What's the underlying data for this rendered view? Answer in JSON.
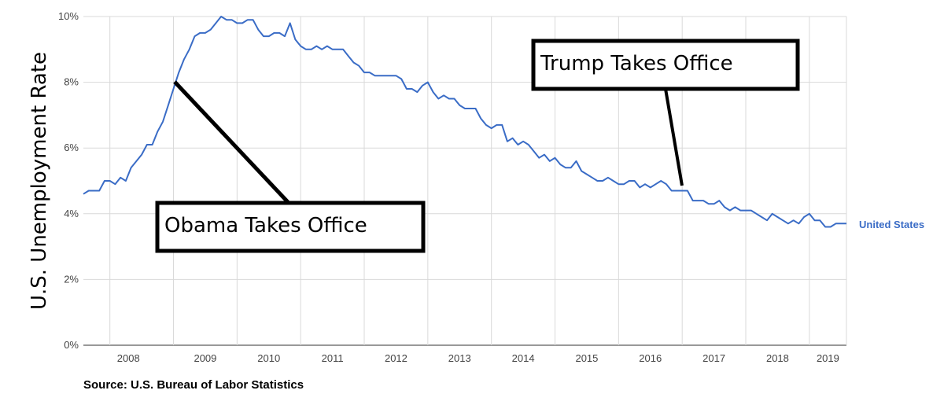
{
  "chart_data": {
    "type": "line",
    "ylabel": "U.S. Unemployment Rate",
    "ylim": [
      0,
      10
    ],
    "xlim": [
      "2007-08",
      "2019-08"
    ],
    "y_ticks": [
      "0%",
      "2%",
      "4%",
      "6%",
      "8%",
      "10%"
    ],
    "x_ticks": [
      "2008",
      "2009",
      "2010",
      "2011",
      "2012",
      "2013",
      "2014",
      "2015",
      "2016",
      "2017",
      "2018",
      "2019"
    ],
    "grid": true,
    "series": [
      {
        "name": "United States",
        "color": "#3a6cc6",
        "points": [
          [
            "2007-08",
            4.6
          ],
          [
            "2007-09",
            4.7
          ],
          [
            "2007-10",
            4.7
          ],
          [
            "2007-11",
            4.7
          ],
          [
            "2007-12",
            5.0
          ],
          [
            "2008-01",
            5.0
          ],
          [
            "2008-02",
            4.9
          ],
          [
            "2008-03",
            5.1
          ],
          [
            "2008-04",
            5.0
          ],
          [
            "2008-05",
            5.4
          ],
          [
            "2008-06",
            5.6
          ],
          [
            "2008-07",
            5.8
          ],
          [
            "2008-08",
            6.1
          ],
          [
            "2008-09",
            6.1
          ],
          [
            "2008-10",
            6.5
          ],
          [
            "2008-11",
            6.8
          ],
          [
            "2008-12",
            7.3
          ],
          [
            "2009-01",
            7.8
          ],
          [
            "2009-02",
            8.3
          ],
          [
            "2009-03",
            8.7
          ],
          [
            "2009-04",
            9.0
          ],
          [
            "2009-05",
            9.4
          ],
          [
            "2009-06",
            9.5
          ],
          [
            "2009-07",
            9.5
          ],
          [
            "2009-08",
            9.6
          ],
          [
            "2009-09",
            9.8
          ],
          [
            "2009-10",
            10.0
          ],
          [
            "2009-11",
            9.9
          ],
          [
            "2009-12",
            9.9
          ],
          [
            "2010-01",
            9.8
          ],
          [
            "2010-02",
            9.8
          ],
          [
            "2010-03",
            9.9
          ],
          [
            "2010-04",
            9.9
          ],
          [
            "2010-05",
            9.6
          ],
          [
            "2010-06",
            9.4
          ],
          [
            "2010-07",
            9.4
          ],
          [
            "2010-08",
            9.5
          ],
          [
            "2010-09",
            9.5
          ],
          [
            "2010-10",
            9.4
          ],
          [
            "2010-11",
            9.8
          ],
          [
            "2010-12",
            9.3
          ],
          [
            "2011-01",
            9.1
          ],
          [
            "2011-02",
            9.0
          ],
          [
            "2011-03",
            9.0
          ],
          [
            "2011-04",
            9.1
          ],
          [
            "2011-05",
            9.0
          ],
          [
            "2011-06",
            9.1
          ],
          [
            "2011-07",
            9.0
          ],
          [
            "2011-08",
            9.0
          ],
          [
            "2011-09",
            9.0
          ],
          [
            "2011-10",
            8.8
          ],
          [
            "2011-11",
            8.6
          ],
          [
            "2011-12",
            8.5
          ],
          [
            "2012-01",
            8.3
          ],
          [
            "2012-02",
            8.3
          ],
          [
            "2012-03",
            8.2
          ],
          [
            "2012-04",
            8.2
          ],
          [
            "2012-05",
            8.2
          ],
          [
            "2012-06",
            8.2
          ],
          [
            "2012-07",
            8.2
          ],
          [
            "2012-08",
            8.1
          ],
          [
            "2012-09",
            7.8
          ],
          [
            "2012-10",
            7.8
          ],
          [
            "2012-11",
            7.7
          ],
          [
            "2012-12",
            7.9
          ],
          [
            "2013-01",
            8.0
          ],
          [
            "2013-02",
            7.7
          ],
          [
            "2013-03",
            7.5
          ],
          [
            "2013-04",
            7.6
          ],
          [
            "2013-05",
            7.5
          ],
          [
            "2013-06",
            7.5
          ],
          [
            "2013-07",
            7.3
          ],
          [
            "2013-08",
            7.2
          ],
          [
            "2013-09",
            7.2
          ],
          [
            "2013-10",
            7.2
          ],
          [
            "2013-11",
            6.9
          ],
          [
            "2013-12",
            6.7
          ],
          [
            "2014-01",
            6.6
          ],
          [
            "2014-02",
            6.7
          ],
          [
            "2014-03",
            6.7
          ],
          [
            "2014-04",
            6.2
          ],
          [
            "2014-05",
            6.3
          ],
          [
            "2014-06",
            6.1
          ],
          [
            "2014-07",
            6.2
          ],
          [
            "2014-08",
            6.1
          ],
          [
            "2014-09",
            5.9
          ],
          [
            "2014-10",
            5.7
          ],
          [
            "2014-11",
            5.8
          ],
          [
            "2014-12",
            5.6
          ],
          [
            "2015-01",
            5.7
          ],
          [
            "2015-02",
            5.5
          ],
          [
            "2015-03",
            5.4
          ],
          [
            "2015-04",
            5.4
          ],
          [
            "2015-05",
            5.6
          ],
          [
            "2015-06",
            5.3
          ],
          [
            "2015-07",
            5.2
          ],
          [
            "2015-08",
            5.1
          ],
          [
            "2015-09",
            5.0
          ],
          [
            "2015-10",
            5.0
          ],
          [
            "2015-11",
            5.1
          ],
          [
            "2015-12",
            5.0
          ],
          [
            "2016-01",
            4.9
          ],
          [
            "2016-02",
            4.9
          ],
          [
            "2016-03",
            5.0
          ],
          [
            "2016-04",
            5.0
          ],
          [
            "2016-05",
            4.8
          ],
          [
            "2016-06",
            4.9
          ],
          [
            "2016-07",
            4.8
          ],
          [
            "2016-08",
            4.9
          ],
          [
            "2016-09",
            5.0
          ],
          [
            "2016-10",
            4.9
          ],
          [
            "2016-11",
            4.7
          ],
          [
            "2016-12",
            4.7
          ],
          [
            "2017-01",
            4.7
          ],
          [
            "2017-02",
            4.7
          ],
          [
            "2017-03",
            4.4
          ],
          [
            "2017-04",
            4.4
          ],
          [
            "2017-05",
            4.4
          ],
          [
            "2017-06",
            4.3
          ],
          [
            "2017-07",
            4.3
          ],
          [
            "2017-08",
            4.4
          ],
          [
            "2017-09",
            4.2
          ],
          [
            "2017-10",
            4.1
          ],
          [
            "2017-11",
            4.2
          ],
          [
            "2017-12",
            4.1
          ],
          [
            "2018-01",
            4.1
          ],
          [
            "2018-02",
            4.1
          ],
          [
            "2018-03",
            4.0
          ],
          [
            "2018-04",
            3.9
          ],
          [
            "2018-05",
            3.8
          ],
          [
            "2018-06",
            4.0
          ],
          [
            "2018-07",
            3.9
          ],
          [
            "2018-08",
            3.8
          ],
          [
            "2018-09",
            3.7
          ],
          [
            "2018-10",
            3.8
          ],
          [
            "2018-11",
            3.7
          ],
          [
            "2018-12",
            3.9
          ],
          [
            "2019-01",
            4.0
          ],
          [
            "2019-02",
            3.8
          ],
          [
            "2019-03",
            3.8
          ],
          [
            "2019-04",
            3.6
          ],
          [
            "2019-05",
            3.6
          ],
          [
            "2019-06",
            3.7
          ],
          [
            "2019-07",
            3.7
          ],
          [
            "2019-08",
            3.7
          ]
        ]
      }
    ],
    "annotations": [
      {
        "text": "Obama Takes Office",
        "x": "2009-01",
        "y": 8.0
      },
      {
        "text": "Trump Takes Office",
        "x": "2017-01",
        "y": 4.8
      }
    ],
    "source": "Source: U.S. Bureau of Labor Statistics"
  }
}
